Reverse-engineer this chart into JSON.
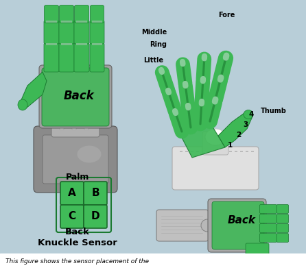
{
  "background_color": "#b8ced8",
  "fig_width": 4.46,
  "fig_height": 3.94,
  "dpi": 100,
  "bottom_text": "This figure shows the sensor placement of the",
  "knuckle_label_palm": "Palm",
  "knuckle_label_back": "Back",
  "knuckle_label_sensor": "Knuckle Sensor",
  "back_label_tl": "Back",
  "back_label_br": "Back",
  "green": "#3db855",
  "green_dark": "#1a7a30",
  "green_mid": "#2ea045",
  "green_light": "#70cc88",
  "gray_light": "#c8c8c8",
  "gray_mid": "#a8a8a8",
  "gray_dark": "#787878",
  "gray_mech": "#909090",
  "white_mech": "#e8e8e8",
  "knuckle_A": "A",
  "knuckle_B": "B",
  "knuckle_C": "C",
  "knuckle_D": "D",
  "label_middle": "Middle",
  "label_ring": "Ring",
  "label_little": "Little",
  "label_fore": "Fore",
  "label_thumb": "Thumb"
}
